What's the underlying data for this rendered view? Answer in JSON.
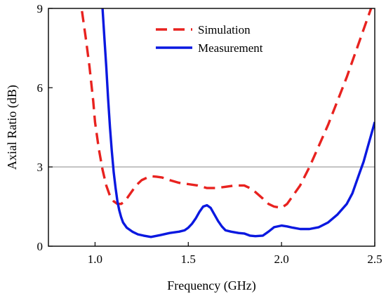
{
  "chart_data": {
    "type": "line",
    "title": "",
    "xlabel": "Frequency (GHz)",
    "ylabel": "Axial Ratio (dB)",
    "xlim": [
      0.75,
      2.5
    ],
    "ylim": [
      0,
      9
    ],
    "xticks": [
      "1.0",
      "1.5",
      "2.0",
      "2.5"
    ],
    "yticks": [
      "0",
      "3",
      "6",
      "9"
    ],
    "reference_line": {
      "y": 3,
      "color": "#a0a0a0"
    },
    "grid": false,
    "legend_position": "top-center",
    "series": [
      {
        "name": "Simulation",
        "color": "#e8221f",
        "dash": "dashed",
        "x": [
          0.93,
          0.95,
          0.97,
          0.99,
          1.0,
          1.02,
          1.04,
          1.06,
          1.08,
          1.1,
          1.12,
          1.14,
          1.16,
          1.18,
          1.2,
          1.22,
          1.25,
          1.28,
          1.3,
          1.33,
          1.36,
          1.4,
          1.45,
          1.5,
          1.55,
          1.6,
          1.65,
          1.7,
          1.75,
          1.8,
          1.83,
          1.86,
          1.9,
          1.93,
          1.96,
          2.0,
          2.03,
          2.06,
          2.1,
          2.15,
          2.2,
          2.25,
          2.3,
          2.35,
          2.4,
          2.45,
          2.48
        ],
        "y": [
          8.9,
          7.9,
          6.8,
          5.5,
          4.7,
          3.7,
          2.9,
          2.3,
          1.9,
          1.7,
          1.6,
          1.6,
          1.7,
          1.9,
          2.1,
          2.3,
          2.5,
          2.6,
          2.65,
          2.63,
          2.6,
          2.5,
          2.4,
          2.35,
          2.3,
          2.2,
          2.2,
          2.25,
          2.3,
          2.3,
          2.2,
          2.05,
          1.8,
          1.6,
          1.5,
          1.45,
          1.6,
          1.9,
          2.3,
          3.0,
          3.8,
          4.6,
          5.5,
          6.4,
          7.4,
          8.4,
          9.0
        ]
      },
      {
        "name": "Measurement",
        "color": "#0a18e0",
        "dash": "solid",
        "x": [
          1.04,
          1.05,
          1.06,
          1.07,
          1.08,
          1.09,
          1.1,
          1.11,
          1.12,
          1.13,
          1.14,
          1.15,
          1.17,
          1.2,
          1.23,
          1.26,
          1.3,
          1.35,
          1.4,
          1.45,
          1.48,
          1.5,
          1.52,
          1.54,
          1.56,
          1.58,
          1.6,
          1.62,
          1.64,
          1.66,
          1.68,
          1.7,
          1.73,
          1.77,
          1.8,
          1.83,
          1.86,
          1.9,
          1.93,
          1.96,
          2.0,
          2.03,
          2.06,
          2.1,
          2.15,
          2.2,
          2.25,
          2.3,
          2.35,
          2.38,
          2.4,
          2.42,
          2.44,
          2.46,
          2.48,
          2.5
        ],
        "y": [
          9.0,
          7.9,
          6.8,
          5.6,
          4.5,
          3.6,
          2.8,
          2.2,
          1.7,
          1.35,
          1.1,
          0.9,
          0.7,
          0.55,
          0.45,
          0.4,
          0.35,
          0.42,
          0.5,
          0.55,
          0.6,
          0.7,
          0.85,
          1.05,
          1.3,
          1.5,
          1.55,
          1.45,
          1.2,
          0.95,
          0.75,
          0.6,
          0.55,
          0.5,
          0.48,
          0.4,
          0.38,
          0.4,
          0.55,
          0.72,
          0.78,
          0.75,
          0.7,
          0.65,
          0.65,
          0.72,
          0.9,
          1.2,
          1.6,
          2.0,
          2.4,
          2.8,
          3.2,
          3.7,
          4.2,
          4.7
        ]
      }
    ]
  }
}
